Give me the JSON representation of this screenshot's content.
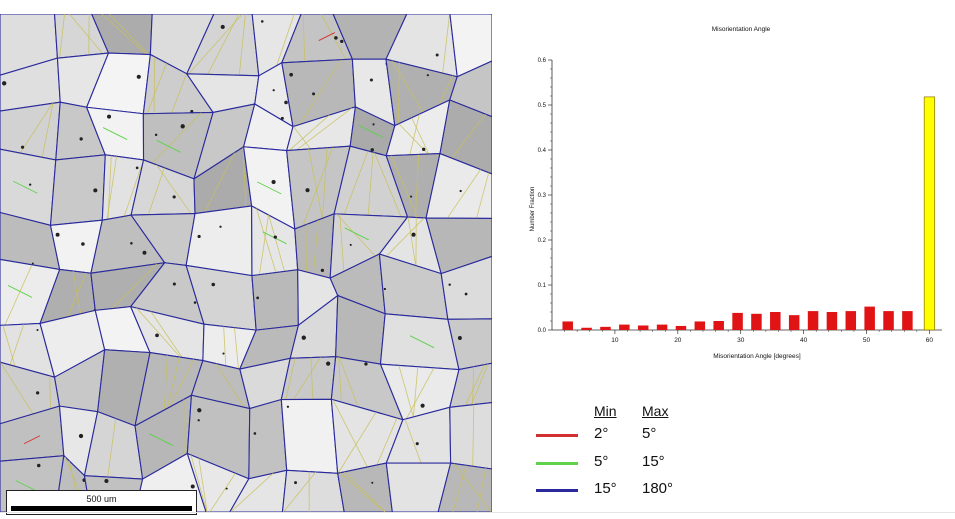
{
  "micrograph": {
    "scale_label": "500 um",
    "grain_boundary_colors": {
      "low": "#d23030",
      "mid": "#5fd14a",
      "high": "#2a2a9c",
      "twin": "#c8c05a"
    }
  },
  "chart_data": {
    "type": "bar",
    "title": "Misorientation Angle",
    "xlabel": "Misorientation Angle [degrees]",
    "ylabel": "Number Fraction",
    "x": [
      2.5,
      5.5,
      8.5,
      11.5,
      14.5,
      17.5,
      20.5,
      23.5,
      26.5,
      29.5,
      32.5,
      35.5,
      38.5,
      41.5,
      44.5,
      47.5,
      50.5,
      53.5,
      56.5,
      60
    ],
    "values": [
      0.019,
      0.005,
      0.007,
      0.012,
      0.01,
      0.012,
      0.009,
      0.019,
      0.02,
      0.038,
      0.036,
      0.04,
      0.033,
      0.042,
      0.04,
      0.042,
      0.052,
      0.042,
      0.042,
      0.518
    ],
    "highlight_index": 19,
    "bar_color": "#e01414",
    "highlight_color": "#ffff00",
    "xlim": [
      0,
      62
    ],
    "ylim": [
      0,
      0.6
    ],
    "xticks": [
      10,
      20,
      30,
      40,
      50,
      60
    ],
    "yticks": [
      0,
      0.1,
      0.2,
      0.3,
      0.4,
      0.5,
      0.6
    ],
    "xtick_labels": [
      "10",
      "20",
      "30",
      "40",
      "50",
      "60"
    ],
    "ytick_labels": [
      "0.0",
      "0.1",
      "0.2",
      "0.3",
      "0.4",
      "0.5",
      "0.6"
    ],
    "grid": false
  },
  "legend": {
    "min_header": "Min",
    "max_header": "Max",
    "rows": [
      {
        "color": "#d23030",
        "min": "2°",
        "max": "5°"
      },
      {
        "color": "#5fd14a",
        "min": "5°",
        "max": "15°"
      },
      {
        "color": "#2a2a9c",
        "min": "15°",
        "max": "180°"
      }
    ]
  }
}
